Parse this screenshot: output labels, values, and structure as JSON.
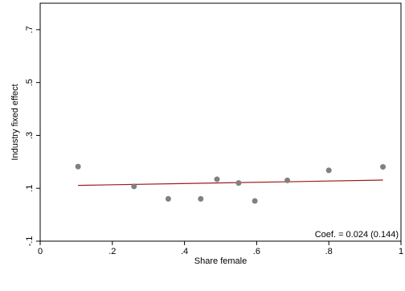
{
  "chart_data": {
    "type": "scatter",
    "title": "",
    "xlabel": "Share female",
    "ylabel": "Industry fixed effect",
    "xlim": [
      0,
      1
    ],
    "ylim": [
      -0.1,
      0.8
    ],
    "x_ticks": [
      {
        "value": 0,
        "label": "0"
      },
      {
        "value": 0.2,
        "label": ".2"
      },
      {
        "value": 0.4,
        "label": ".4"
      },
      {
        "value": 0.6,
        "label": ".6"
      },
      {
        "value": 0.8,
        "label": ".8"
      },
      {
        "value": 1,
        "label": "1"
      }
    ],
    "y_ticks": [
      {
        "value": -0.1,
        "label": "-.1"
      },
      {
        "value": 0.1,
        "label": ".1"
      },
      {
        "value": 0.3,
        "label": ".3"
      },
      {
        "value": 0.5,
        "label": ".5"
      },
      {
        "value": 0.7,
        "label": ".7"
      }
    ],
    "grid": false,
    "points": [
      {
        "x": 0.105,
        "y": 0.182
      },
      {
        "x": 0.26,
        "y": 0.107
      },
      {
        "x": 0.355,
        "y": 0.06
      },
      {
        "x": 0.445,
        "y": 0.06
      },
      {
        "x": 0.49,
        "y": 0.134
      },
      {
        "x": 0.55,
        "y": 0.12
      },
      {
        "x": 0.595,
        "y": 0.052
      },
      {
        "x": 0.685,
        "y": 0.13
      },
      {
        "x": 0.8,
        "y": 0.168
      },
      {
        "x": 0.95,
        "y": 0.181
      }
    ],
    "fit_line": {
      "x": [
        0.105,
        0.95
      ],
      "y": [
        0.111,
        0.131
      ]
    },
    "annotation": "Coef. = 0.024 (0.144)",
    "colors": {
      "points": "#808080",
      "fit_line": "#9b1b1b",
      "axes": "#000000",
      "background": "#ffffff"
    }
  }
}
